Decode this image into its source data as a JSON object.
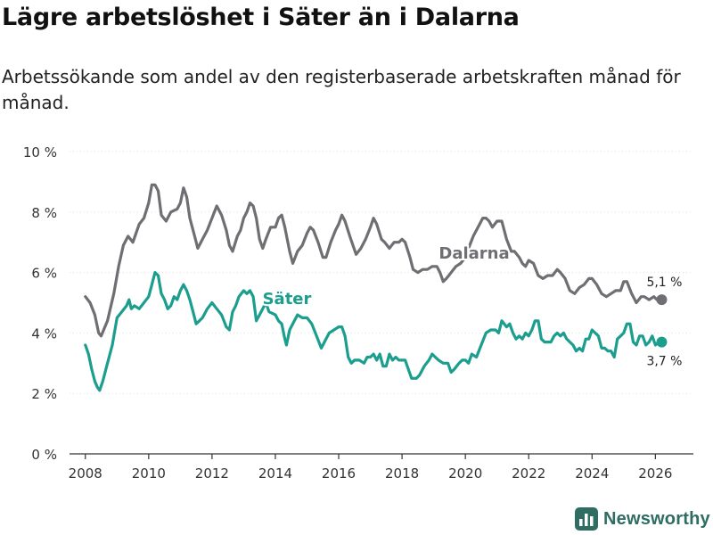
{
  "title": "Lägre arbetslöshet i Säter än i Dalarna",
  "subtitle": "Arbetssökande som andel av den registerbaserade arbetskraften månad för månad.",
  "brand": "Newsworthy",
  "colors": {
    "dalarna": "#6f6f73",
    "sater": "#1b9e8e",
    "grid": "#dddddd",
    "axis": "#333333",
    "brand": "#2f6d63"
  },
  "chart_data": {
    "type": "line",
    "ylim": [
      0,
      10
    ],
    "xlim": [
      2007.5,
      2027.2
    ],
    "y_ticks": [
      0,
      2,
      4,
      6,
      8,
      10
    ],
    "y_tick_labels": [
      "0 %",
      "2 %",
      "4 %",
      "6 %",
      "8 %",
      "10 %"
    ],
    "x_ticks": [
      2008,
      2010,
      2012,
      2014,
      2016,
      2018,
      2020,
      2022,
      2024,
      2026
    ],
    "x_tick_labels": [
      "2008",
      "2010",
      "2012",
      "2014",
      "2016",
      "2018",
      "2020",
      "2022",
      "2024",
      "2026"
    ],
    "series": [
      {
        "name": "Dalarna",
        "label": "Dalarna",
        "end_label": "5,1 %",
        "points": [
          [
            2008.0,
            5.2
          ],
          [
            2008.15,
            5.0
          ],
          [
            2008.3,
            4.6
          ],
          [
            2008.42,
            4.0
          ],
          [
            2008.5,
            3.9
          ],
          [
            2008.7,
            4.4
          ],
          [
            2008.9,
            5.3
          ],
          [
            2009.05,
            6.2
          ],
          [
            2009.2,
            6.9
          ],
          [
            2009.35,
            7.2
          ],
          [
            2009.5,
            7.0
          ],
          [
            2009.7,
            7.6
          ],
          [
            2009.85,
            7.8
          ],
          [
            2010.0,
            8.3
          ],
          [
            2010.1,
            8.9
          ],
          [
            2010.2,
            8.9
          ],
          [
            2010.3,
            8.7
          ],
          [
            2010.4,
            7.9
          ],
          [
            2010.55,
            7.7
          ],
          [
            2010.7,
            8.0
          ],
          [
            2010.9,
            8.1
          ],
          [
            2011.0,
            8.3
          ],
          [
            2011.1,
            8.8
          ],
          [
            2011.2,
            8.5
          ],
          [
            2011.3,
            7.8
          ],
          [
            2011.45,
            7.2
          ],
          [
            2011.55,
            6.8
          ],
          [
            2011.7,
            7.1
          ],
          [
            2011.85,
            7.4
          ],
          [
            2012.0,
            7.8
          ],
          [
            2012.15,
            8.2
          ],
          [
            2012.3,
            7.9
          ],
          [
            2012.45,
            7.4
          ],
          [
            2012.55,
            6.9
          ],
          [
            2012.65,
            6.7
          ],
          [
            2012.8,
            7.2
          ],
          [
            2012.9,
            7.4
          ],
          [
            2013.0,
            7.8
          ],
          [
            2013.1,
            8.0
          ],
          [
            2013.2,
            8.3
          ],
          [
            2013.3,
            8.2
          ],
          [
            2013.4,
            7.8
          ],
          [
            2013.5,
            7.1
          ],
          [
            2013.6,
            6.8
          ],
          [
            2013.7,
            7.1
          ],
          [
            2013.85,
            7.5
          ],
          [
            2014.0,
            7.5
          ],
          [
            2014.1,
            7.8
          ],
          [
            2014.2,
            7.9
          ],
          [
            2014.3,
            7.5
          ],
          [
            2014.45,
            6.7
          ],
          [
            2014.55,
            6.3
          ],
          [
            2014.7,
            6.7
          ],
          [
            2014.85,
            6.9
          ],
          [
            2015.0,
            7.3
          ],
          [
            2015.1,
            7.5
          ],
          [
            2015.2,
            7.4
          ],
          [
            2015.35,
            7.0
          ],
          [
            2015.5,
            6.5
          ],
          [
            2015.6,
            6.5
          ],
          [
            2015.75,
            7.0
          ],
          [
            2015.9,
            7.4
          ],
          [
            2016.0,
            7.6
          ],
          [
            2016.1,
            7.9
          ],
          [
            2016.2,
            7.7
          ],
          [
            2016.35,
            7.2
          ],
          [
            2016.45,
            6.9
          ],
          [
            2016.55,
            6.6
          ],
          [
            2016.7,
            6.8
          ],
          [
            2016.85,
            7.1
          ],
          [
            2017.0,
            7.5
          ],
          [
            2017.1,
            7.8
          ],
          [
            2017.2,
            7.6
          ],
          [
            2017.35,
            7.1
          ],
          [
            2017.45,
            7.0
          ],
          [
            2017.6,
            6.8
          ],
          [
            2017.75,
            7.0
          ],
          [
            2017.9,
            7.0
          ],
          [
            2018.0,
            7.1
          ],
          [
            2018.1,
            7.0
          ],
          [
            2018.25,
            6.5
          ],
          [
            2018.35,
            6.1
          ],
          [
            2018.5,
            6.0
          ],
          [
            2018.65,
            6.1
          ],
          [
            2018.8,
            6.1
          ],
          [
            2018.95,
            6.2
          ],
          [
            2019.1,
            6.2
          ],
          [
            2019.2,
            6.0
          ],
          [
            2019.3,
            5.7
          ],
          [
            2019.4,
            5.8
          ],
          [
            2019.55,
            6.0
          ],
          [
            2019.7,
            6.2
          ],
          [
            2019.85,
            6.3
          ],
          [
            2020.0,
            6.5
          ],
          [
            2020.1,
            6.8
          ],
          [
            2020.25,
            7.2
          ],
          [
            2020.4,
            7.5
          ],
          [
            2020.55,
            7.8
          ],
          [
            2020.65,
            7.8
          ],
          [
            2020.75,
            7.7
          ],
          [
            2020.85,
            7.5
          ],
          [
            2021.0,
            7.7
          ],
          [
            2021.15,
            7.7
          ],
          [
            2021.3,
            7.1
          ],
          [
            2021.45,
            6.7
          ],
          [
            2021.55,
            6.7
          ],
          [
            2021.7,
            6.5
          ],
          [
            2021.8,
            6.3
          ],
          [
            2021.9,
            6.2
          ],
          [
            2022.0,
            6.4
          ],
          [
            2022.15,
            6.3
          ],
          [
            2022.3,
            5.9
          ],
          [
            2022.45,
            5.8
          ],
          [
            2022.6,
            5.9
          ],
          [
            2022.75,
            5.9
          ],
          [
            2022.9,
            6.1
          ],
          [
            2023.0,
            6.0
          ],
          [
            2023.15,
            5.8
          ],
          [
            2023.3,
            5.4
          ],
          [
            2023.45,
            5.3
          ],
          [
            2023.6,
            5.5
          ],
          [
            2023.75,
            5.6
          ],
          [
            2023.9,
            5.8
          ],
          [
            2024.0,
            5.8
          ],
          [
            2024.15,
            5.6
          ],
          [
            2024.3,
            5.3
          ],
          [
            2024.45,
            5.2
          ],
          [
            2024.6,
            5.3
          ],
          [
            2024.75,
            5.4
          ],
          [
            2024.9,
            5.4
          ],
          [
            2025.0,
            5.7
          ],
          [
            2025.1,
            5.7
          ],
          [
            2025.25,
            5.3
          ],
          [
            2025.4,
            5.0
          ],
          [
            2025.55,
            5.2
          ],
          [
            2025.65,
            5.2
          ],
          [
            2025.8,
            5.1
          ],
          [
            2025.95,
            5.2
          ],
          [
            2026.05,
            5.1
          ],
          [
            2026.2,
            5.1
          ]
        ]
      },
      {
        "name": "Säter",
        "label": "Säter",
        "end_label": "3,7 %",
        "points": [
          [
            2008.0,
            3.6
          ],
          [
            2008.1,
            3.3
          ],
          [
            2008.2,
            2.8
          ],
          [
            2008.3,
            2.4
          ],
          [
            2008.38,
            2.2
          ],
          [
            2008.45,
            2.1
          ],
          [
            2008.55,
            2.4
          ],
          [
            2008.7,
            3.0
          ],
          [
            2008.85,
            3.6
          ],
          [
            2009.0,
            4.5
          ],
          [
            2009.15,
            4.7
          ],
          [
            2009.3,
            4.9
          ],
          [
            2009.38,
            5.1
          ],
          [
            2009.45,
            4.8
          ],
          [
            2009.55,
            4.9
          ],
          [
            2009.7,
            4.8
          ],
          [
            2009.85,
            5.0
          ],
          [
            2010.0,
            5.2
          ],
          [
            2010.1,
            5.6
          ],
          [
            2010.2,
            6.0
          ],
          [
            2010.3,
            5.9
          ],
          [
            2010.4,
            5.3
          ],
          [
            2010.5,
            5.1
          ],
          [
            2010.6,
            4.8
          ],
          [
            2010.7,
            4.9
          ],
          [
            2010.8,
            5.2
          ],
          [
            2010.9,
            5.1
          ],
          [
            2011.0,
            5.4
          ],
          [
            2011.1,
            5.6
          ],
          [
            2011.2,
            5.4
          ],
          [
            2011.3,
            5.1
          ],
          [
            2011.4,
            4.7
          ],
          [
            2011.5,
            4.3
          ],
          [
            2011.6,
            4.4
          ],
          [
            2011.7,
            4.5
          ],
          [
            2011.85,
            4.8
          ],
          [
            2012.0,
            5.0
          ],
          [
            2012.15,
            4.8
          ],
          [
            2012.3,
            4.6
          ],
          [
            2012.45,
            4.2
          ],
          [
            2012.55,
            4.1
          ],
          [
            2012.65,
            4.7
          ],
          [
            2012.75,
            4.9
          ],
          [
            2012.85,
            5.2
          ],
          [
            2013.0,
            5.4
          ],
          [
            2013.1,
            5.3
          ],
          [
            2013.2,
            5.4
          ],
          [
            2013.3,
            5.2
          ],
          [
            2013.4,
            4.4
          ],
          [
            2013.5,
            4.6
          ],
          [
            2013.6,
            4.8
          ],
          [
            2013.7,
            5.0
          ],
          [
            2013.8,
            4.7
          ],
          [
            2014.0,
            4.6
          ],
          [
            2014.1,
            4.4
          ],
          [
            2014.2,
            4.3
          ],
          [
            2014.3,
            3.8
          ],
          [
            2014.35,
            3.6
          ],
          [
            2014.45,
            4.1
          ],
          [
            2014.6,
            4.4
          ],
          [
            2014.7,
            4.6
          ],
          [
            2014.85,
            4.5
          ],
          [
            2015.0,
            4.5
          ],
          [
            2015.15,
            4.3
          ],
          [
            2015.3,
            3.9
          ],
          [
            2015.45,
            3.5
          ],
          [
            2015.55,
            3.7
          ],
          [
            2015.7,
            4.0
          ],
          [
            2015.85,
            4.1
          ],
          [
            2016.0,
            4.2
          ],
          [
            2016.1,
            4.2
          ],
          [
            2016.2,
            3.9
          ],
          [
            2016.3,
            3.2
          ],
          [
            2016.4,
            3.0
          ],
          [
            2016.5,
            3.1
          ],
          [
            2016.65,
            3.1
          ],
          [
            2016.8,
            3.0
          ],
          [
            2016.9,
            3.2
          ],
          [
            2017.0,
            3.2
          ],
          [
            2017.1,
            3.3
          ],
          [
            2017.2,
            3.1
          ],
          [
            2017.3,
            3.3
          ],
          [
            2017.4,
            2.9
          ],
          [
            2017.5,
            2.9
          ],
          [
            2017.6,
            3.3
          ],
          [
            2017.7,
            3.1
          ],
          [
            2017.8,
            3.2
          ],
          [
            2017.9,
            3.1
          ],
          [
            2018.0,
            3.1
          ],
          [
            2018.1,
            3.1
          ],
          [
            2018.2,
            2.8
          ],
          [
            2018.3,
            2.5
          ],
          [
            2018.45,
            2.5
          ],
          [
            2018.55,
            2.6
          ],
          [
            2018.7,
            2.9
          ],
          [
            2018.85,
            3.1
          ],
          [
            2018.95,
            3.3
          ],
          [
            2019.05,
            3.2
          ],
          [
            2019.15,
            3.1
          ],
          [
            2019.3,
            3.0
          ],
          [
            2019.45,
            3.0
          ],
          [
            2019.55,
            2.7
          ],
          [
            2019.65,
            2.8
          ],
          [
            2019.8,
            3.0
          ],
          [
            2019.9,
            3.1
          ],
          [
            2020.0,
            3.1
          ],
          [
            2020.1,
            3.0
          ],
          [
            2020.2,
            3.3
          ],
          [
            2020.35,
            3.2
          ],
          [
            2020.5,
            3.6
          ],
          [
            2020.65,
            4.0
          ],
          [
            2020.8,
            4.1
          ],
          [
            2020.95,
            4.1
          ],
          [
            2021.05,
            4.0
          ],
          [
            2021.15,
            4.4
          ],
          [
            2021.3,
            4.2
          ],
          [
            2021.4,
            4.3
          ],
          [
            2021.5,
            4.0
          ],
          [
            2021.6,
            3.8
          ],
          [
            2021.7,
            3.9
          ],
          [
            2021.8,
            3.8
          ],
          [
            2021.9,
            4.0
          ],
          [
            2022.0,
            3.9
          ],
          [
            2022.1,
            4.1
          ],
          [
            2022.2,
            4.4
          ],
          [
            2022.3,
            4.4
          ],
          [
            2022.4,
            3.8
          ],
          [
            2022.5,
            3.7
          ],
          [
            2022.6,
            3.7
          ],
          [
            2022.7,
            3.7
          ],
          [
            2022.8,
            3.9
          ],
          [
            2022.9,
            4.0
          ],
          [
            2023.0,
            3.9
          ],
          [
            2023.1,
            4.0
          ],
          [
            2023.2,
            3.8
          ],
          [
            2023.3,
            3.7
          ],
          [
            2023.4,
            3.6
          ],
          [
            2023.5,
            3.4
          ],
          [
            2023.6,
            3.5
          ],
          [
            2023.7,
            3.4
          ],
          [
            2023.8,
            3.8
          ],
          [
            2023.9,
            3.8
          ],
          [
            2024.0,
            4.1
          ],
          [
            2024.1,
            4.0
          ],
          [
            2024.2,
            3.9
          ],
          [
            2024.3,
            3.5
          ],
          [
            2024.4,
            3.5
          ],
          [
            2024.5,
            3.4
          ],
          [
            2024.6,
            3.4
          ],
          [
            2024.7,
            3.2
          ],
          [
            2024.8,
            3.8
          ],
          [
            2024.9,
            3.9
          ],
          [
            2025.0,
            4.0
          ],
          [
            2025.1,
            4.3
          ],
          [
            2025.2,
            4.3
          ],
          [
            2025.3,
            3.7
          ],
          [
            2025.4,
            3.6
          ],
          [
            2025.5,
            3.9
          ],
          [
            2025.6,
            3.9
          ],
          [
            2025.7,
            3.6
          ],
          [
            2025.8,
            3.7
          ],
          [
            2025.9,
            3.9
          ],
          [
            2026.0,
            3.6
          ],
          [
            2026.1,
            3.7
          ],
          [
            2026.2,
            3.7
          ]
        ]
      }
    ]
  }
}
